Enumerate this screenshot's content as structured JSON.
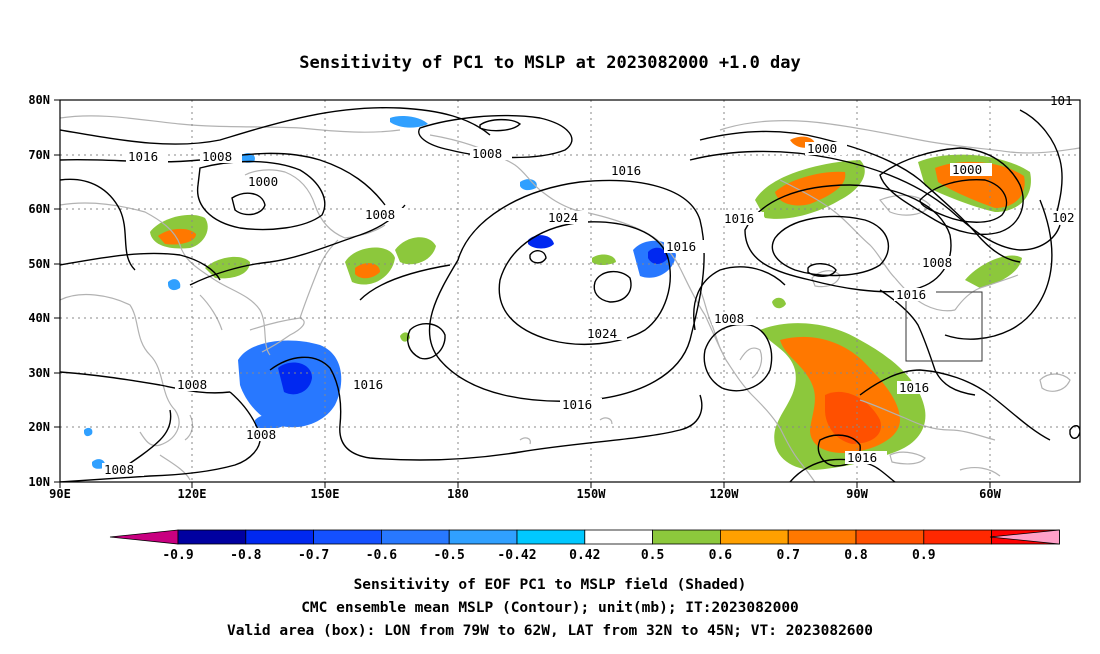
{
  "title": "Sensitivity of PC1 to MSLP at 2023082000 +1.0 day",
  "axes": {
    "lat_labels": [
      "80N",
      "70N",
      "60N",
      "50N",
      "40N",
      "30N",
      "20N",
      "10N"
    ],
    "lon_labels": [
      "90E",
      "120E",
      "150E",
      "180",
      "150W",
      "120W",
      "90W",
      "60W"
    ]
  },
  "contour_labels": [
    "1016",
    "1008",
    "1000",
    "1008",
    "1008",
    "1016",
    "1024",
    "1016",
    "1016",
    "1024",
    "1008",
    "1016",
    "1008",
    "1016",
    "1008",
    "1000",
    "1000",
    "1016",
    "1008",
    "1016",
    "1016",
    "102",
    "101"
  ],
  "colorbar": {
    "labels": [
      "-0.9",
      "-0.8",
      "-0.7",
      "-0.6",
      "-0.5",
      "-0.42",
      "0.42",
      "0.5",
      "0.6",
      "0.7",
      "0.8",
      "0.9"
    ],
    "colors": [
      "#c80080",
      "#0000a0",
      "#0028f0",
      "#1450ff",
      "#2878ff",
      "#30a0ff",
      "#00c8ff",
      "#ffffff",
      "#8cc83c",
      "#ffa000",
      "#ff7800",
      "#ff5000",
      "#ff2800",
      "#ff0000",
      "#ffa0c8"
    ]
  },
  "caption": [
    "Sensitivity of EOF PC1 to MSLP field (Shaded)",
    "CMC ensemble mean MSLP (Contour); unit(mb); IT:2023082000",
    "Valid area (box): LON from 79W to 62W, LAT from 32N to 45N; VT: 2023082600"
  ],
  "validation_box": {
    "lon_min": -79,
    "lon_max": -62,
    "lat_min": 32,
    "lat_max": 45
  }
}
